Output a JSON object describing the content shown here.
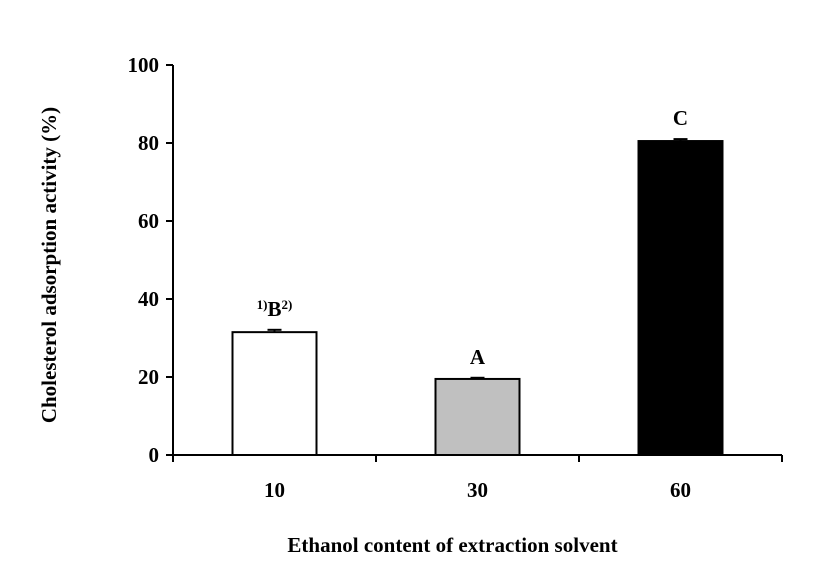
{
  "chart_data": {
    "type": "bar",
    "categories": [
      "10",
      "30",
      "60"
    ],
    "values": [
      31.5,
      19.5,
      80.5
    ],
    "errors": [
      0.6,
      0.3,
      0.5
    ],
    "bar_colors": [
      "#ffffff",
      "#c0c0c0",
      "#000000"
    ],
    "bar_labels": [
      {
        "pre": "1)",
        "main": "B",
        "post": "2)"
      },
      {
        "pre": "",
        "main": "A",
        "post": ""
      },
      {
        "pre": "",
        "main": "C",
        "post": ""
      }
    ],
    "xlabel": "Ethanol content of extraction solvent",
    "ylabel": "Cholesterol adsorption activity (%)",
    "ylim": [
      0,
      100
    ],
    "yticks": [
      0,
      20,
      40,
      60,
      80,
      100
    ],
    "grid": false,
    "legend": "none"
  }
}
